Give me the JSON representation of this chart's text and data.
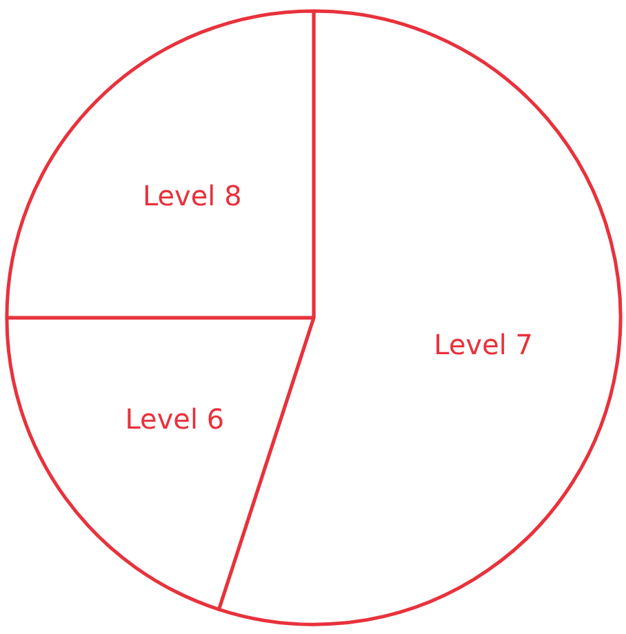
{
  "chart_data": {
    "type": "pie",
    "categories": [
      "Level 7",
      "Level 6",
      "Level 8"
    ],
    "values": [
      55,
      20,
      25
    ],
    "colors": [
      "#e8323c",
      "#e8323c",
      "#e8323c"
    ]
  }
}
